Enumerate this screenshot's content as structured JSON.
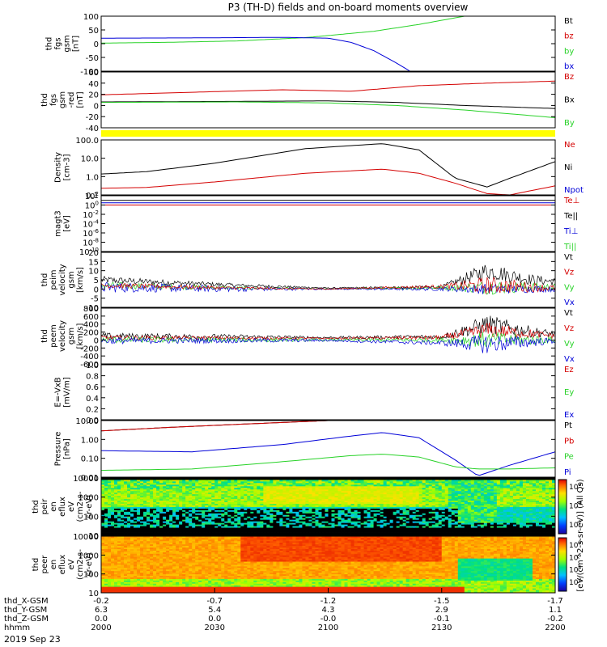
{
  "title": "P3 (TH-D) fields and on-board moments overview",
  "date_label": "2019 Sep 23",
  "colors": {
    "black": "#000000",
    "red": "#d40000",
    "green": "#28d228",
    "blue": "#0000d8",
    "yellow": "#ffff00"
  },
  "footer": {
    "row_labels": [
      "thd_X-GSM",
      "thd_Y-GSM",
      "thd_Z-GSM",
      "hhmm"
    ],
    "columns": [
      {
        "x": "-0.2",
        "y": "6.3",
        "z": "0.0",
        "t": "2000"
      },
      {
        "x": "-0.7",
        "y": "5.4",
        "z": "0.0",
        "t": "2030"
      },
      {
        "x": "-1.2",
        "y": "4.3",
        "z": "-0.0",
        "t": "2100"
      },
      {
        "x": "-1.5",
        "y": "2.9",
        "z": "-0.1",
        "t": "2130"
      },
      {
        "x": "-1.7",
        "y": "1.1",
        "z": "-0.2",
        "t": "2200"
      }
    ]
  },
  "colorbar": {
    "ticks1": [
      "10^6",
      "10^4",
      "10^2"
    ],
    "ticks2": [
      "10^8",
      "10^6",
      "10^4",
      "10^2"
    ],
    "label": "[eV/(cm^2-s-sr-eV)] (All Qs)"
  },
  "chart_data": [
    {
      "type": "line",
      "ylabel": [
        "thd",
        "fgs",
        "gsm",
        "[nT]"
      ],
      "ylim": [
        -100,
        100
      ],
      "yticks": [
        "100",
        "50",
        "0",
        "-50",
        "-100"
      ],
      "legend": [
        "Bt",
        "bz",
        "by",
        "bx"
      ],
      "legend_colors": [
        "#000000",
        "#d40000",
        "#28d228",
        "#0000d8"
      ],
      "series": [
        {
          "name": "by",
          "color": "#28d228",
          "x": [
            0,
            0.15,
            0.3,
            0.45,
            0.6,
            0.7,
            0.75,
            0.8
          ],
          "values": [
            2,
            5,
            10,
            22,
            45,
            70,
            85,
            100
          ]
        },
        {
          "name": "bx",
          "color": "#0000d8",
          "x": [
            0,
            0.2,
            0.4,
            0.5,
            0.55,
            0.6,
            0.65,
            0.68
          ],
          "values": [
            20,
            21,
            23,
            20,
            5,
            -25,
            -70,
            -100
          ]
        }
      ]
    },
    {
      "type": "line",
      "ylabel": [
        "thd",
        "fgs",
        "gsm",
        "-red",
        "[nT]"
      ],
      "ylim": [
        -50,
        60
      ],
      "yticks": [
        "60",
        "40",
        "20",
        "0",
        "-20",
        "-40"
      ],
      "legend": [
        "Bz",
        "Bx",
        "By"
      ],
      "legend_colors": [
        "#d40000",
        "#000000",
        "#28d228"
      ],
      "series": [
        {
          "name": "Bz",
          "color": "#d40000",
          "x": [
            0,
            0.2,
            0.4,
            0.55,
            0.7,
            0.85,
            1
          ],
          "values": [
            15,
            20,
            25,
            22,
            33,
            38,
            42
          ]
        },
        {
          "name": "Bx",
          "color": "#000000",
          "x": [
            0,
            0.3,
            0.5,
            0.65,
            0.8,
            1
          ],
          "values": [
            1,
            2,
            3,
            0,
            -6,
            -12
          ]
        },
        {
          "name": "By",
          "color": "#28d228",
          "x": [
            0,
            0.3,
            0.5,
            0.65,
            0.8,
            1
          ],
          "values": [
            0,
            1,
            -1,
            -6,
            -15,
            -30
          ]
        }
      ]
    },
    {
      "type": "line",
      "ylabel": [
        "Density",
        "[cm-3]"
      ],
      "log": true,
      "ylim": [
        0.1,
        200
      ],
      "yticks": [
        "100.0",
        "10.0",
        "1.0",
        "0.1"
      ],
      "legend": [
        "Ne",
        "Ni",
        "Npot"
      ],
      "legend_colors": [
        "#d40000",
        "#000000",
        "#0000d8"
      ],
      "series": [
        {
          "name": "Ni",
          "color": "#000000",
          "x": [
            0,
            0.1,
            0.25,
            0.45,
            0.62,
            0.7,
            0.78,
            0.85,
            0.9,
            1
          ],
          "values": [
            1.8,
            2.5,
            8,
            60,
            120,
            50,
            1,
            0.3,
            1,
            10
          ]
        },
        {
          "name": "Ne",
          "color": "#d40000",
          "x": [
            0,
            0.1,
            0.25,
            0.45,
            0.62,
            0.7,
            0.78,
            0.85,
            0.9,
            1
          ],
          "values": [
            0.25,
            0.28,
            0.6,
            2,
            3.5,
            2,
            0.5,
            0.12,
            0.1,
            0.35
          ]
        }
      ]
    },
    {
      "type": "line",
      "ylabel": [
        "magt3",
        "[eV]"
      ],
      "log": true,
      "ylim": [
        1e-10,
        100.0
      ],
      "yticks": [
        "10^2",
        "10^0",
        "10^-2",
        "10^-4",
        "10^-6",
        "10^-8",
        "10^-10"
      ],
      "legend": [
        "Te⊥",
        "Te||",
        "Ti⊥",
        "Ti||"
      ],
      "legend_colors": [
        "#d40000",
        "#000000",
        "#0000d8",
        "#28d228"
      ],
      "series": [
        {
          "name": "Te||",
          "color": "#000000",
          "x": [
            0,
            1
          ],
          "values": [
            10,
            10
          ]
        },
        {
          "name": "Ti⊥",
          "color": "#0000d8",
          "x": [
            0,
            1
          ],
          "values": [
            3,
            3
          ]
        },
        {
          "name": "Te⊥",
          "color": "#d40000",
          "x": [
            0,
            1
          ],
          "values": [
            1,
            1
          ]
        }
      ]
    },
    {
      "type": "line",
      "ylabel": [
        "thd",
        "peim",
        "velocity",
        "gsm",
        "[km/s]"
      ],
      "ylim": [
        -10,
        20
      ],
      "yticks": [
        "20",
        "15",
        "10",
        "5",
        "0",
        "-5",
        "-10"
      ],
      "legend": [
        "Vt",
        "Vz",
        "Vy",
        "Vx"
      ],
      "legend_colors": [
        "#000000",
        "#d40000",
        "#28d228",
        "#0000d8"
      ],
      "noise": [
        {
          "color": "#000000",
          "base": [
            [
              0,
              5
            ],
            [
              0.3,
              2
            ],
            [
              0.5,
              0.5
            ],
            [
              0.75,
              1
            ],
            [
              0.85,
              10
            ],
            [
              0.95,
              5
            ],
            [
              1,
              4
            ]
          ],
          "amp": [
            [
              0,
              2
            ],
            [
              0.3,
              1
            ],
            [
              0.5,
              0.3
            ],
            [
              0.75,
              1
            ],
            [
              0.85,
              5
            ],
            [
              1,
              2
            ]
          ]
        },
        {
          "color": "#28d228",
          "base": [
            [
              0,
              2
            ],
            [
              0.3,
              0.5
            ],
            [
              0.5,
              0
            ],
            [
              0.85,
              1
            ],
            [
              1,
              1
            ]
          ],
          "amp": [
            [
              0,
              2
            ],
            [
              0.3,
              1
            ],
            [
              0.5,
              0.2
            ],
            [
              0.75,
              1
            ],
            [
              0.85,
              4
            ],
            [
              1,
              2
            ]
          ]
        },
        {
          "color": "#0000d8",
          "base": [
            [
              0,
              1
            ],
            [
              0.3,
              0
            ],
            [
              0.5,
              0
            ],
            [
              0.85,
              0
            ],
            [
              1,
              0
            ]
          ],
          "amp": [
            [
              0,
              3
            ],
            [
              0.3,
              1.5
            ],
            [
              0.5,
              0.3
            ],
            [
              0.75,
              1
            ],
            [
              0.85,
              3
            ],
            [
              1,
              1.5
            ]
          ]
        },
        {
          "color": "#d40000",
          "base": [
            [
              0,
              2
            ],
            [
              0.3,
              0.5
            ],
            [
              0.5,
              0
            ],
            [
              0.85,
              2
            ],
            [
              1,
              0.5
            ]
          ],
          "amp": [
            [
              0,
              1.5
            ],
            [
              0.3,
              0.8
            ],
            [
              0.5,
              0.2
            ],
            [
              0.75,
              1
            ],
            [
              0.85,
              5
            ],
            [
              1,
              1.5
            ]
          ]
        }
      ]
    },
    {
      "type": "line",
      "ylabel": [
        "thd",
        "peem",
        "velocity",
        "gsm",
        "[km/s]"
      ],
      "ylim": [
        -600,
        800
      ],
      "yticks": [
        "800",
        "600",
        "400",
        "200",
        "0",
        "-200",
        "-400",
        "-600"
      ],
      "legend": [
        "Vt",
        "Vz",
        "Vy",
        "Vx"
      ],
      "legend_colors": [
        "#000000",
        "#d40000",
        "#28d228",
        "#0000d8"
      ],
      "noise": [
        {
          "color": "#000000",
          "base": [
            [
              0,
              100
            ],
            [
              0.3,
              80
            ],
            [
              0.5,
              60
            ],
            [
              0.75,
              80
            ],
            [
              0.85,
              400
            ],
            [
              0.95,
              200
            ],
            [
              1,
              150
            ]
          ],
          "amp": [
            [
              0,
              80
            ],
            [
              0.3,
              60
            ],
            [
              0.5,
              30
            ],
            [
              0.75,
              60
            ],
            [
              0.85,
              250
            ],
            [
              1,
              80
            ]
          ]
        },
        {
          "color": "#d40000",
          "base": [
            [
              0,
              60
            ],
            [
              0.3,
              50
            ],
            [
              0.5,
              40
            ],
            [
              0.75,
              60
            ],
            [
              0.85,
              250
            ],
            [
              1,
              100
            ]
          ],
          "amp": [
            [
              0,
              60
            ],
            [
              0.3,
              40
            ],
            [
              0.5,
              20
            ],
            [
              0.75,
              60
            ],
            [
              0.85,
              200
            ],
            [
              1,
              60
            ]
          ]
        },
        {
          "color": "#28d228",
          "base": [
            [
              0,
              0
            ],
            [
              0.5,
              0
            ],
            [
              0.85,
              0
            ],
            [
              1,
              0
            ]
          ],
          "amp": [
            [
              0,
              80
            ],
            [
              0.3,
              60
            ],
            [
              0.5,
              30
            ],
            [
              0.75,
              60
            ],
            [
              0.85,
              220
            ],
            [
              1,
              80
            ]
          ]
        },
        {
          "color": "#0000d8",
          "base": [
            [
              0,
              -20
            ],
            [
              0.5,
              -10
            ],
            [
              0.85,
              -100
            ],
            [
              1,
              -20
            ]
          ],
          "amp": [
            [
              0,
              80
            ],
            [
              0.3,
              60
            ],
            [
              0.5,
              30
            ],
            [
              0.75,
              60
            ],
            [
              0.85,
              250
            ],
            [
              1,
              60
            ]
          ]
        }
      ]
    },
    {
      "type": "line",
      "ylabel": [
        "E=-VxB",
        "[mV/m]"
      ],
      "ylim": [
        0,
        1
      ],
      "yticks": [
        "1.0",
        "0.8",
        "0.6",
        "0.4",
        "0.2",
        "0.0"
      ],
      "legend": [
        "Ez",
        "Ey",
        "Ex"
      ],
      "legend_colors": [
        "#d40000",
        "#28d228",
        "#0000d8"
      ],
      "series": []
    },
    {
      "type": "line",
      "ylabel": [
        "Pressure",
        "[nPa]"
      ],
      "log": true,
      "ylim": [
        0.01,
        20
      ],
      "yticks": [
        "10.00",
        "1.00",
        "0.10",
        "0.01"
      ],
      "legend": [
        "Pt",
        "Pb",
        "Pe",
        "Pi"
      ],
      "legend_colors": [
        "#000000",
        "#d40000",
        "#28d228",
        "#0000d8"
      ],
      "series": [
        {
          "name": "Pt",
          "color": "#000000",
          "x": [
            0,
            0.15,
            0.3,
            0.5,
            0.55
          ],
          "values": [
            5,
            8,
            12,
            20,
            22
          ]
        },
        {
          "name": "Pb",
          "color": "#d40000",
          "x": [
            0,
            0.15,
            0.3,
            0.5,
            0.55
          ],
          "values": [
            5,
            8,
            12,
            20,
            22
          ]
        },
        {
          "name": "Pi",
          "color": "#0000d8",
          "x": [
            0,
            0.2,
            0.4,
            0.55,
            0.62,
            0.7,
            0.78,
            0.83,
            0.9,
            1
          ],
          "values": [
            0.35,
            0.3,
            0.8,
            2.5,
            4,
            2,
            0.1,
            0.012,
            0.05,
            0.3
          ]
        },
        {
          "name": "Pe",
          "color": "#28d228",
          "x": [
            0,
            0.2,
            0.4,
            0.55,
            0.62,
            0.7,
            0.78,
            0.83,
            0.9,
            1
          ],
          "values": [
            0.025,
            0.03,
            0.08,
            0.18,
            0.22,
            0.15,
            0.04,
            0.03,
            0.03,
            0.035
          ]
        }
      ]
    },
    {
      "type": "heatmap",
      "ylabel": [
        "thd",
        "peir",
        "en",
        "eflux",
        "eV",
        "(cm2-s-",
        "sr-eV)"
      ],
      "log": true,
      "ylim": [
        5,
        20000
      ],
      "yticks": [
        "10000",
        "1000",
        "100",
        "10"
      ]
    },
    {
      "type": "heatmap",
      "ylabel": [
        "thd",
        "peer",
        "en",
        "eflux",
        "eV",
        "(cm2-s-",
        "sr-eV)"
      ],
      "log": true,
      "ylim": [
        5,
        30000
      ],
      "yticks": [
        "10000",
        "1000",
        "100",
        "10"
      ]
    }
  ]
}
